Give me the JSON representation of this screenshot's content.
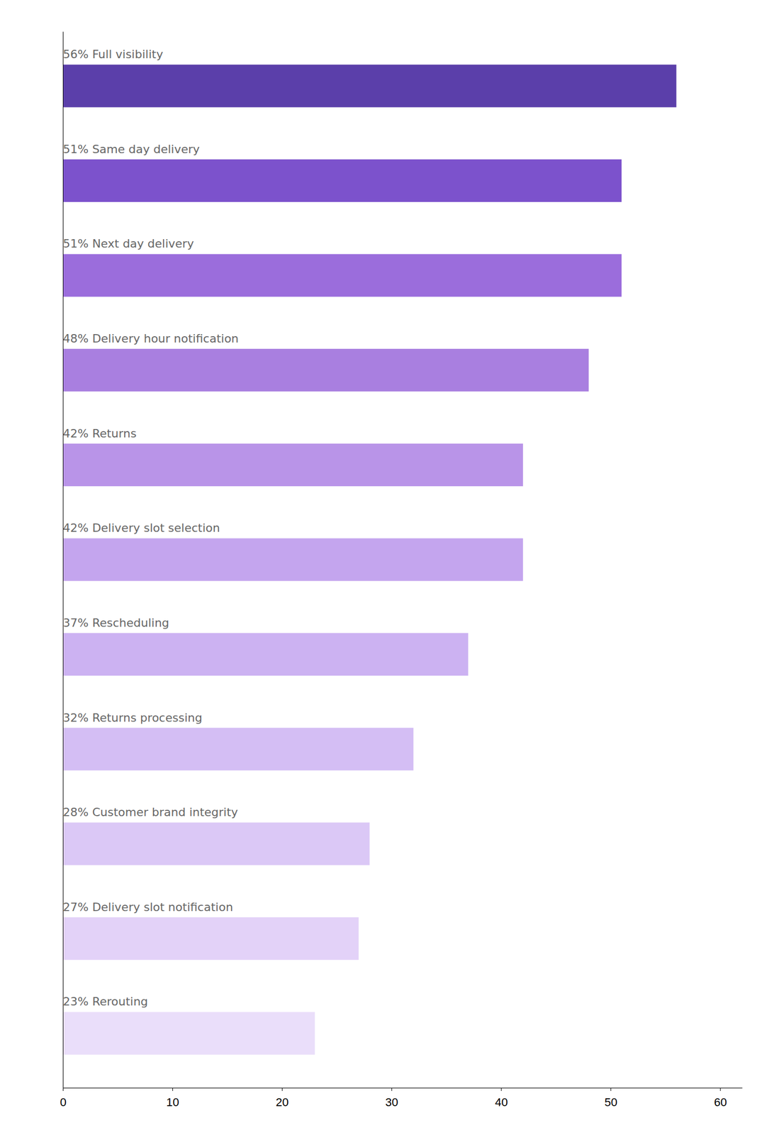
{
  "chart_data": {
    "type": "bar",
    "orientation": "horizontal",
    "categories": [
      "56% Full visibility",
      "51% Same day delivery",
      "51% Next day delivery",
      "48% Delivery hour notification",
      "42% Returns",
      "42% Delivery slot selection",
      "37% Rescheduling",
      "32% Returns processing",
      "28% Customer brand integrity",
      "27% Delivery slot notification",
      "23% Rerouting"
    ],
    "values": [
      56,
      51,
      51,
      48,
      42,
      42,
      37,
      32,
      28,
      27,
      23
    ],
    "colors": [
      "#5b3faa",
      "#7c52cc",
      "#9b6ddc",
      "#a97fe0",
      "#b994e8",
      "#c4a5ee",
      "#ccb2f2",
      "#d4bef4",
      "#dbc8f6",
      "#e3d2f8",
      "#eadefa"
    ],
    "xlim": [
      0,
      62
    ],
    "xticks": [
      0,
      10,
      20,
      30,
      40,
      50,
      60
    ],
    "grid": false,
    "tick_labels": "x"
  }
}
